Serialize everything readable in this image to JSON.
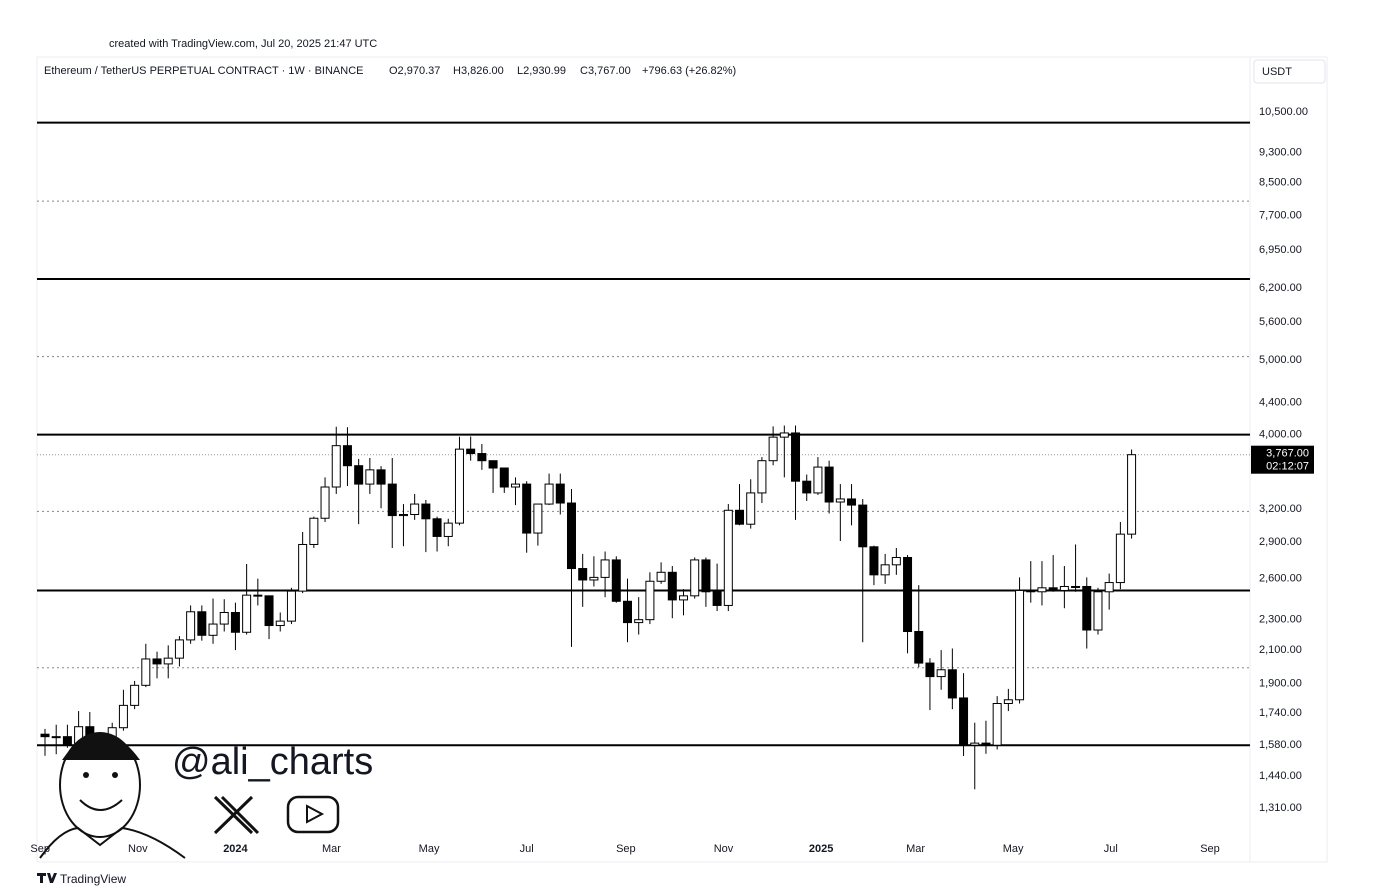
{
  "caption": "created with TradingView.com, Jul 20, 2025 21:47 UTC",
  "brand": "TradingView",
  "watermark": {
    "handle": "@ali_charts"
  },
  "chart_data": {
    "type": "candlestick",
    "title": "Ethereum / TetherUS PERPETUAL CONTRACT · 1W · BINANCE",
    "ohlc_text": [
      "O2,970.37",
      "H3,826.00",
      "L2,930.99",
      "C3,767.00"
    ],
    "change_text": "+796.63 (+26.82%)",
    "currency": "USDT",
    "log_scale": true,
    "up_color": "#ffffff",
    "down_color": "#000000",
    "xlim": [
      "2023-08-30",
      "2025-09-26"
    ],
    "ylim": [
      1208,
      11380
    ],
    "xticks": [
      {
        "value": "2023-09-01",
        "label": "Sep"
      },
      {
        "value": "2023-11-01",
        "label": "Nov"
      },
      {
        "value": "2024-01-01",
        "label": "2024"
      },
      {
        "value": "2024-03-01",
        "label": "Mar"
      },
      {
        "value": "2024-05-01",
        "label": "May"
      },
      {
        "value": "2024-07-01",
        "label": "Jul"
      },
      {
        "value": "2024-09-01",
        "label": "Sep"
      },
      {
        "value": "2024-11-01",
        "label": "Nov"
      },
      {
        "value": "2025-01-01",
        "label": "2025"
      },
      {
        "value": "2025-03-01",
        "label": "Mar"
      },
      {
        "value": "2025-05-01",
        "label": "May"
      },
      {
        "value": "2025-07-01",
        "label": "Jul"
      },
      {
        "value": "2025-09-01",
        "label": "Sep"
      }
    ],
    "yticks": [
      {
        "value": 10500,
        "label": "10,500.00"
      },
      {
        "value": 9300,
        "label": "9,300.00"
      },
      {
        "value": 8500,
        "label": "8,500.00"
      },
      {
        "value": 7700,
        "label": "7,700.00"
      },
      {
        "value": 6950,
        "label": "6,950.00"
      },
      {
        "value": 6200,
        "label": "6,200.00"
      },
      {
        "value": 5600,
        "label": "5,600.00"
      },
      {
        "value": 5000,
        "label": "5,000.00"
      },
      {
        "value": 4400,
        "label": "4,400.00"
      },
      {
        "value": 4000,
        "label": "4,000.00"
      },
      {
        "value": 3200,
        "label": "3,200.00"
      },
      {
        "value": 2900,
        "label": "2,900.00"
      },
      {
        "value": 2600,
        "label": "2,600.00"
      },
      {
        "value": 2300,
        "label": "2,300.00"
      },
      {
        "value": 2100,
        "label": "2,100.00"
      },
      {
        "value": 1900,
        "label": "1,900.00"
      },
      {
        "value": 1740,
        "label": "1,740.00"
      },
      {
        "value": 1580,
        "label": "1,580.00"
      },
      {
        "value": 1440,
        "label": "1,440.00"
      },
      {
        "value": 1310,
        "label": "1,310.00"
      }
    ],
    "levels": [
      {
        "value": 10170,
        "style": "solid"
      },
      {
        "value": 8040,
        "style": "dotted"
      },
      {
        "value": 6370,
        "style": "solid"
      },
      {
        "value": 5050,
        "style": "dotted"
      },
      {
        "value": 4000,
        "style": "solid"
      },
      {
        "value": 3180,
        "style": "dotted"
      },
      {
        "value": 2510,
        "style": "solid"
      },
      {
        "value": 1992,
        "style": "dotted"
      },
      {
        "value": 1580,
        "style": "solid"
      }
    ],
    "last_price": {
      "value": 3767,
      "label": "3,767.00"
    },
    "countdown": "02:12:07",
    "x": [
      "2023-09-04",
      "2023-09-11",
      "2023-09-18",
      "2023-09-25",
      "2023-10-02",
      "2023-10-09",
      "2023-10-16",
      "2023-10-23",
      "2023-10-30",
      "2023-11-06",
      "2023-11-13",
      "2023-11-20",
      "2023-11-27",
      "2023-12-04",
      "2023-12-11",
      "2023-12-18",
      "2023-12-25",
      "2024-01-01",
      "2024-01-08",
      "2024-01-15",
      "2024-01-22",
      "2024-01-29",
      "2024-02-05",
      "2024-02-12",
      "2024-02-19",
      "2024-02-26",
      "2024-03-04",
      "2024-03-11",
      "2024-03-18",
      "2024-03-25",
      "2024-04-01",
      "2024-04-08",
      "2024-04-15",
      "2024-04-22",
      "2024-04-29",
      "2024-05-06",
      "2024-05-13",
      "2024-05-20",
      "2024-05-27",
      "2024-06-03",
      "2024-06-10",
      "2024-06-17",
      "2024-06-24",
      "2024-07-01",
      "2024-07-08",
      "2024-07-15",
      "2024-07-22",
      "2024-07-29",
      "2024-08-05",
      "2024-08-12",
      "2024-08-19",
      "2024-08-26",
      "2024-09-02",
      "2024-09-09",
      "2024-09-16",
      "2024-09-23",
      "2024-09-30",
      "2024-10-07",
      "2024-10-14",
      "2024-10-21",
      "2024-10-28",
      "2024-11-04",
      "2024-11-11",
      "2024-11-18",
      "2024-11-25",
      "2024-12-02",
      "2024-12-09",
      "2024-12-16",
      "2024-12-23",
      "2024-12-30",
      "2025-01-06",
      "2025-01-13",
      "2025-01-20",
      "2025-01-27",
      "2025-02-03",
      "2025-02-10",
      "2025-02-17",
      "2025-02-24",
      "2025-03-03",
      "2025-03-10",
      "2025-03-17",
      "2025-03-24",
      "2025-03-31",
      "2025-04-07",
      "2025-04-14",
      "2025-04-21",
      "2025-04-28",
      "2025-05-05",
      "2025-05-12",
      "2025-05-19",
      "2025-05-26",
      "2025-06-02",
      "2025-06-09",
      "2025-06-16",
      "2025-06-23",
      "2025-06-30",
      "2025-07-07",
      "2025-07-14"
    ],
    "open": [
      1633,
      1621,
      1621,
      1580,
      1670,
      1580,
      1555,
      1665,
      1780,
      1890,
      2045,
      2015,
      2050,
      2165,
      2355,
      2195,
      2270,
      2350,
      2215,
      2475,
      2470,
      2260,
      2290,
      2505,
      2880,
      3115,
      3420,
      3870,
      3645,
      3450,
      3600,
      3450,
      3140,
      3150,
      3250,
      3110,
      2950,
      3070,
      3830,
      3780,
      3700,
      3620,
      3420,
      3450,
      2980,
      3250,
      3450,
      3260,
      2680,
      2590,
      2610,
      2750,
      2430,
      2280,
      2300,
      2580,
      2650,
      2440,
      2470,
      2750,
      2500,
      2400,
      3190,
      3060,
      3360,
      3700,
      3970,
      4020,
      3480,
      3360,
      3630,
      3270,
      3300,
      3240,
      2860,
      2630,
      2710,
      2770,
      2220,
      2020,
      1940,
      1980,
      1820,
      1580,
      1590,
      1580,
      1790,
      1810,
      2510,
      2500,
      2530,
      2510,
      2540,
      2540,
      2230,
      2500,
      2570,
      2970.37
    ],
    "high": [
      1659,
      1680,
      1680,
      1750,
      1745,
      1590,
      1690,
      1865,
      1915,
      2140,
      2090,
      2130,
      2190,
      2400,
      2400,
      2450,
      2445,
      2420,
      2717,
      2600,
      2470,
      2350,
      2530,
      2990,
      3130,
      3520,
      4095,
      4090,
      3720,
      3730,
      3640,
      3730,
      3250,
      3350,
      3290,
      3130,
      3110,
      3975,
      3978,
      3890,
      3700,
      3620,
      3520,
      3480,
      3250,
      3560,
      3560,
      3400,
      2800,
      2780,
      2820,
      2780,
      2600,
      2460,
      2650,
      2730,
      2700,
      2520,
      2770,
      2770,
      2720,
      3250,
      3450,
      3500,
      3740,
      4100,
      4110,
      4110,
      3550,
      3740,
      3700,
      3450,
      3450,
      3300,
      2870,
      2800,
      2850,
      2790,
      2550,
      2050,
      2100,
      2110,
      1960,
      1690,
      1700,
      1830,
      1870,
      2610,
      2740,
      2740,
      2790,
      2700,
      2880,
      2610,
      2530,
      2640,
      3080,
      3826
    ],
    "low": [
      1531,
      1538,
      1568,
      1575,
      1540,
      1521,
      1545,
      1650,
      1760,
      1880,
      1930,
      1930,
      2000,
      2140,
      2160,
      2140,
      2220,
      2100,
      2200,
      2400,
      2170,
      2220,
      2270,
      2490,
      2850,
      3080,
      3350,
      3430,
      3060,
      3350,
      3210,
      2850,
      2865,
      3100,
      2815,
      2820,
      2865,
      3050,
      3700,
      3600,
      3360,
      3360,
      3240,
      2810,
      2870,
      3240,
      3150,
      2120,
      2390,
      2540,
      2460,
      2420,
      2150,
      2200,
      2270,
      2560,
      2310,
      2330,
      2450,
      2390,
      2360,
      2360,
      3050,
      3020,
      3260,
      3650,
      3520,
      3100,
      3280,
      3340,
      3160,
      2910,
      3050,
      2150,
      2550,
      2560,
      2630,
      2080,
      1995,
      1755,
      1865,
      1760,
      1530,
      1385,
      1540,
      1560,
      1750,
      1790,
      2420,
      2400,
      2500,
      2380,
      2500,
      2110,
      2200,
      2370,
      2520,
      2930.99
    ],
    "close": [
      1621,
      1621,
      1580,
      1670,
      1580,
      1555,
      1665,
      1780,
      1890,
      2045,
      2015,
      2050,
      2165,
      2355,
      2195,
      2270,
      2350,
      2215,
      2475,
      2470,
      2260,
      2290,
      2505,
      2880,
      3115,
      3420,
      3870,
      3645,
      3450,
      3600,
      3450,
      3140,
      3150,
      3250,
      3110,
      2950,
      3070,
      3830,
      3780,
      3700,
      3620,
      3420,
      3450,
      2980,
      3250,
      3450,
      3260,
      2680,
      2590,
      2610,
      2750,
      2430,
      2280,
      2300,
      2580,
      2650,
      2440,
      2470,
      2750,
      2500,
      2400,
      3190,
      3060,
      3360,
      3700,
      3970,
      4020,
      3480,
      3360,
      3630,
      3270,
      3300,
      3240,
      2860,
      2630,
      2710,
      2770,
      2220,
      2020,
      1940,
      1980,
      1820,
      1580,
      1590,
      1580,
      1790,
      1810,
      2510,
      2500,
      2530,
      2510,
      2540,
      2540,
      2230,
      2500,
      2570,
      2970.37,
      3767
    ]
  }
}
